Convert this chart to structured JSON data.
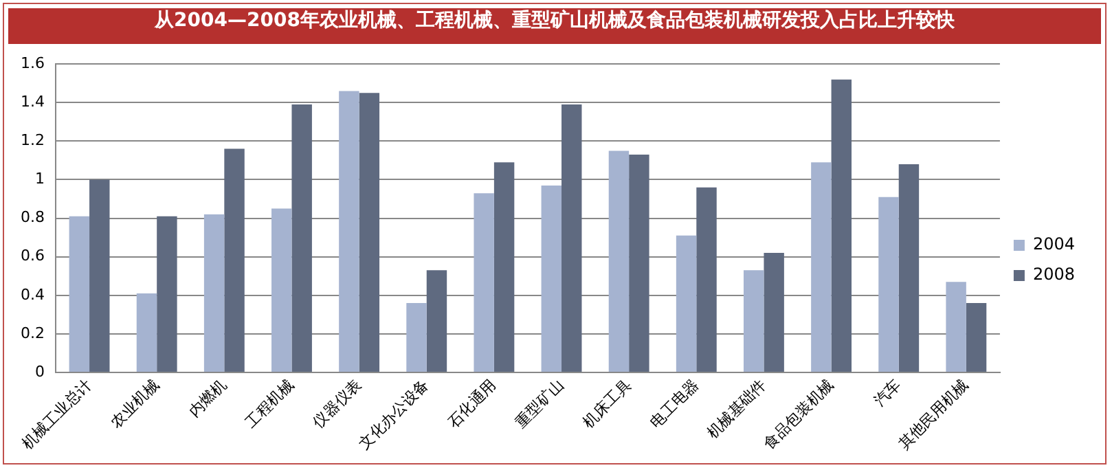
{
  "chart_data": {
    "type": "bar",
    "title": "从2004—2008年农业机械、工程机械、重型矿山机械及食品包装机械研发投入占比上升较快",
    "categories": [
      "机械工业总计",
      "农业机械",
      "内燃机",
      "工程机械",
      "仪器仪表",
      "文化办公设备",
      "石化通用",
      "重型矿山",
      "机床工具",
      "电工电器",
      "机械基础件",
      "食品包装机械",
      "汽车",
      "其他民用机械"
    ],
    "series": [
      {
        "name": "2004",
        "color": "#a5b3d0",
        "values": [
          0.81,
          0.41,
          0.82,
          0.85,
          1.46,
          0.36,
          0.93,
          0.97,
          1.15,
          0.71,
          0.53,
          1.09,
          0.91,
          0.47
        ]
      },
      {
        "name": "2008",
        "color": "#5f6a80",
        "values": [
          1.0,
          0.81,
          1.16,
          1.39,
          1.45,
          0.53,
          1.09,
          1.39,
          1.13,
          0.96,
          0.62,
          1.52,
          1.08,
          0.36
        ]
      }
    ],
    "ylim": [
      0,
      1.6
    ],
    "yticks": [
      0,
      0.2,
      0.4,
      0.6,
      0.8,
      1,
      1.2,
      1.4,
      1.6
    ],
    "grid": "y",
    "legend": "right"
  }
}
